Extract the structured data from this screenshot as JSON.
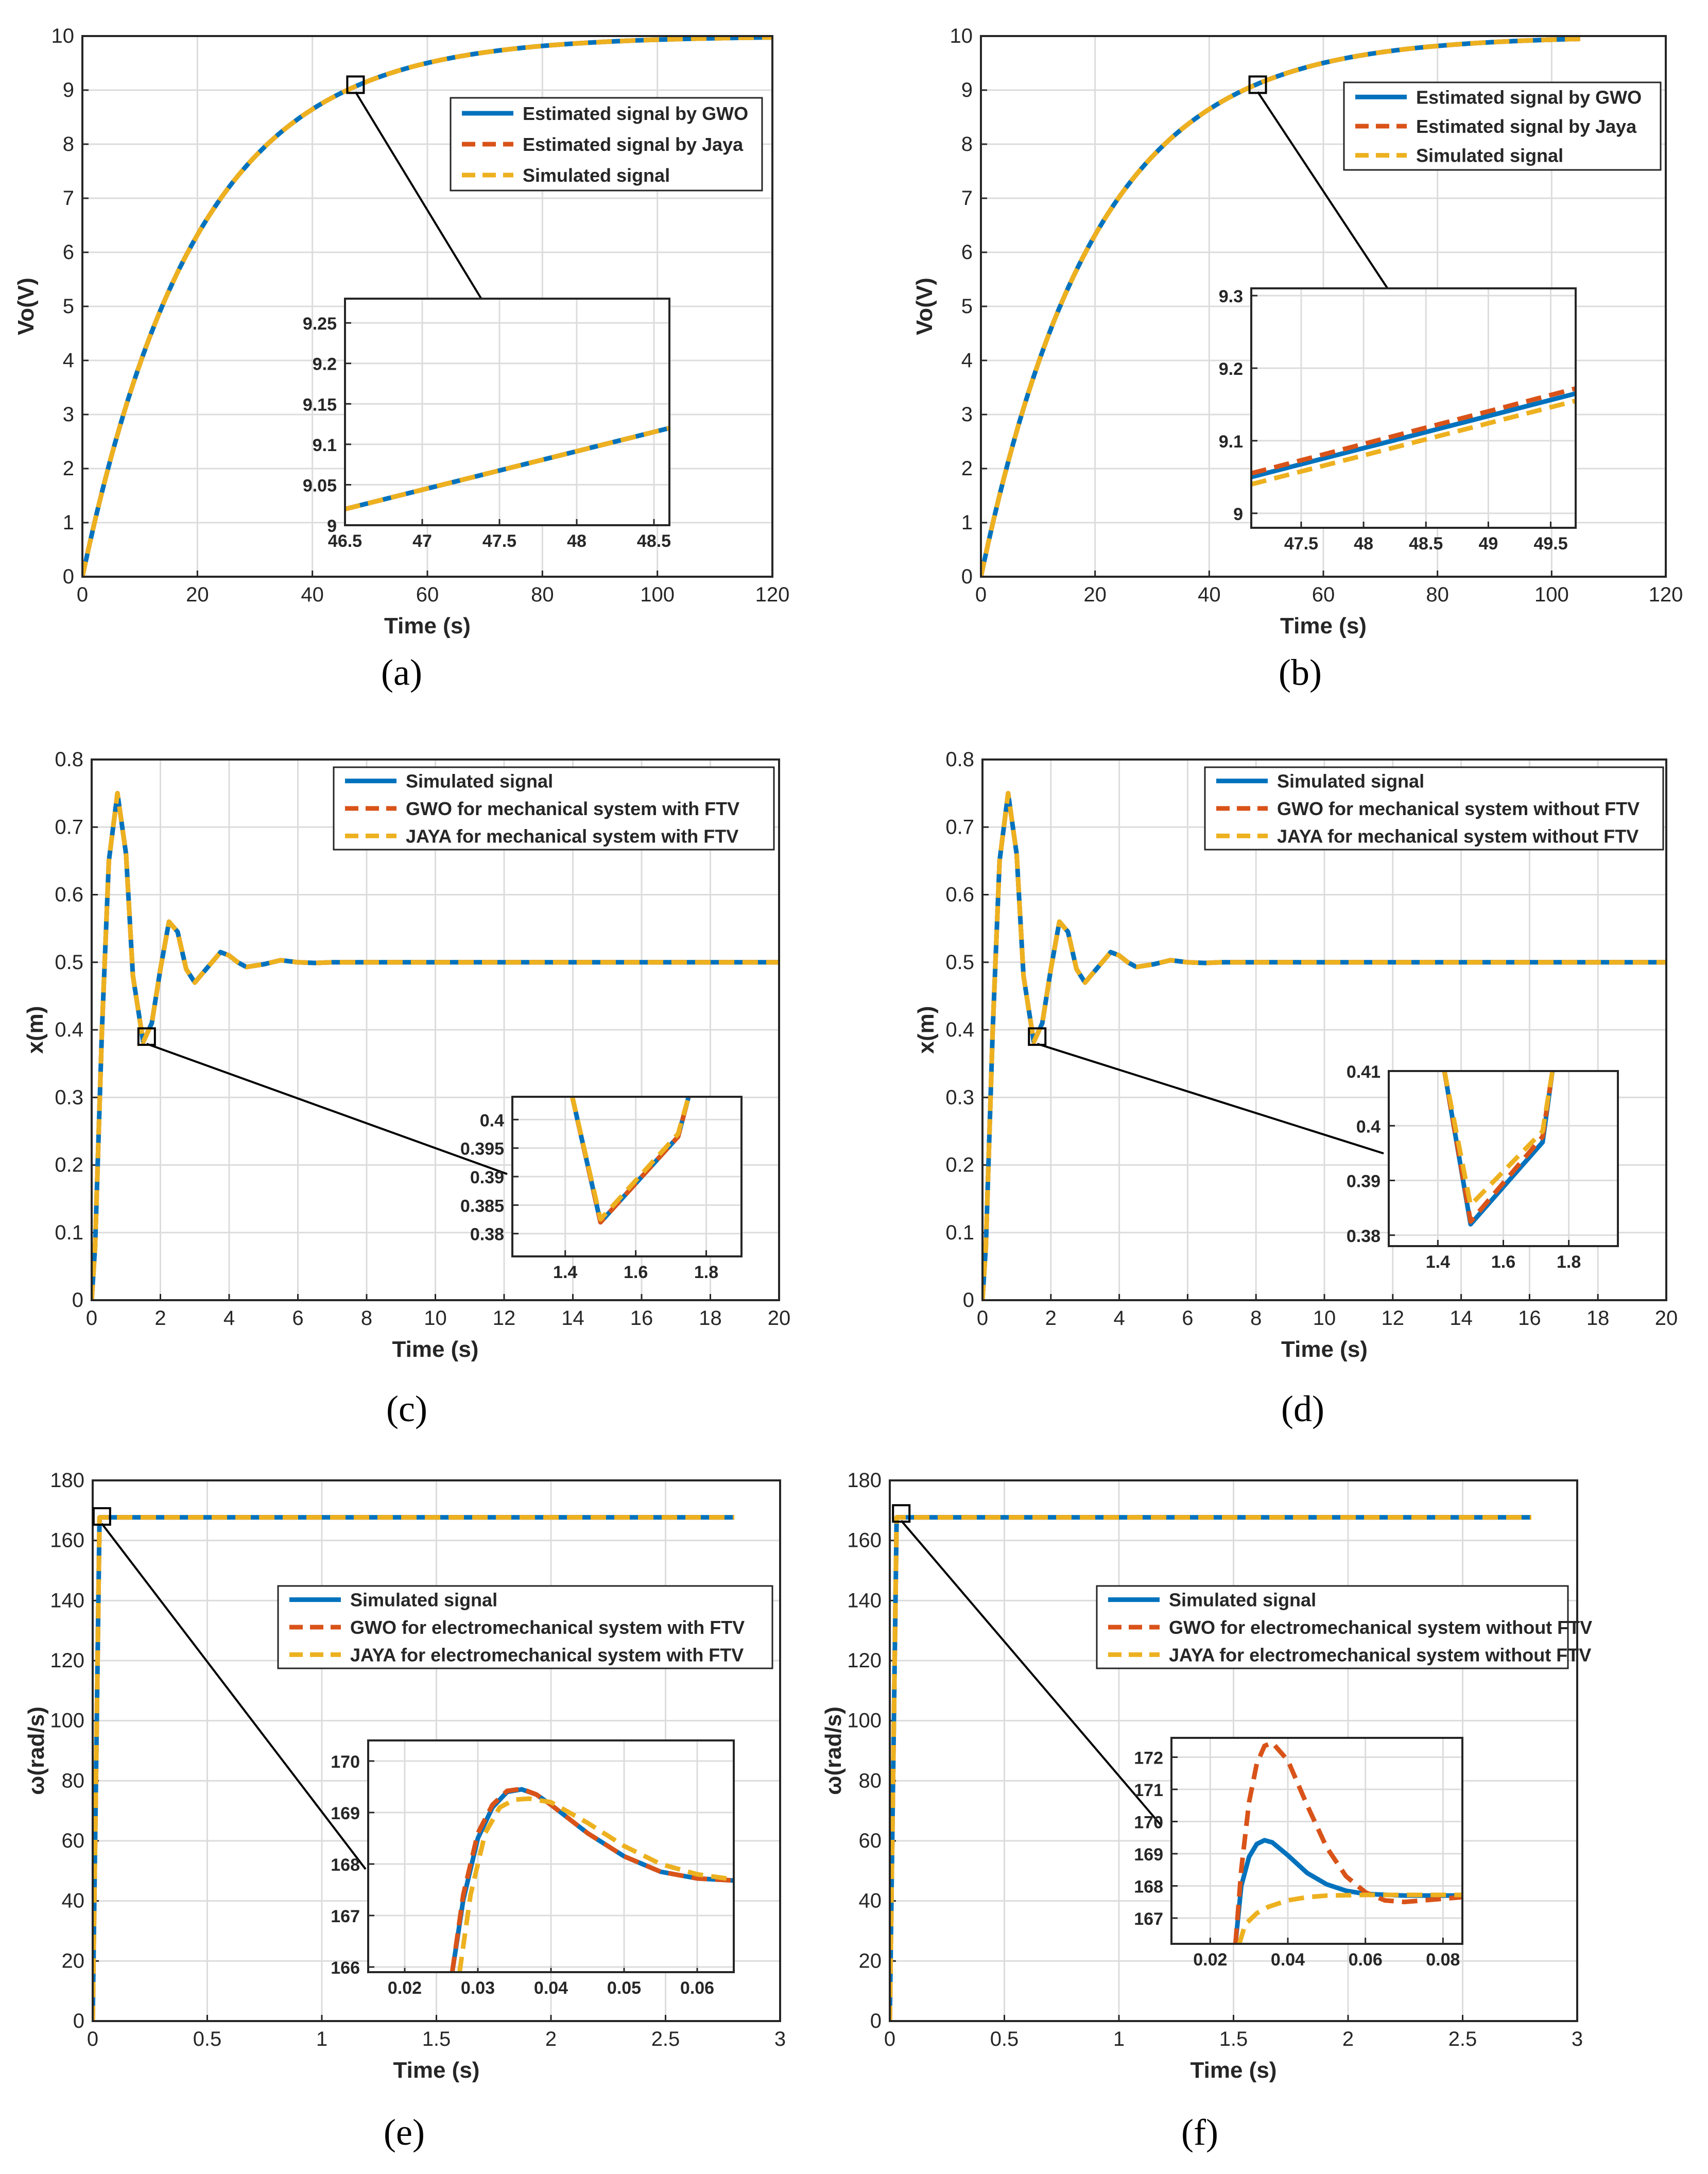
{
  "chart_data": [
    {
      "type": "line",
      "panel_label": "(a)",
      "xlabel": "Time (s)",
      "ylabel": "Vo(V)",
      "xlim": [
        0,
        120
      ],
      "ylim": [
        0,
        10
      ],
      "xticks": [
        "0",
        "20",
        "40",
        "60",
        "80",
        "100",
        "120"
      ],
      "yticks": [
        "0",
        "1",
        "2",
        "3",
        "4",
        "5",
        "6",
        "7",
        "8",
        "9",
        "10"
      ],
      "model": {
        "kind": "exp",
        "K": 10,
        "tau": 20,
        "xmax": 120
      },
      "series": [
        {
          "name": "Estimated signal by GWO",
          "color": "#0072BD",
          "dash": "solid"
        },
        {
          "name": "Estimated signal by Jaya",
          "color": "#D95319",
          "dash": "dashed"
        },
        {
          "name": "Simulated signal",
          "color": "#EDB120",
          "dash": "dashed"
        }
      ],
      "legend_position": "top-right",
      "zoom_marker": {
        "x": 47.5,
        "y": 9.1
      },
      "inset": {
        "xlim": [
          46.5,
          48.6
        ],
        "ylim": [
          9.0,
          9.28
        ],
        "xticks": [
          "46.5",
          "47",
          "47.5",
          "48",
          "48.5"
        ],
        "yticks": [
          "9",
          "9.05",
          "9.1",
          "9.15",
          "9.2",
          "9.25"
        ],
        "series": [
          {
            "name": "Estimated signal by GWO",
            "x": [
              46.5,
              48.6
            ],
            "y": [
              9.02,
              9.12
            ]
          },
          {
            "name": "Estimated signal by Jaya",
            "x": [
              46.5,
              48.6
            ],
            "y": [
              9.02,
              9.12
            ]
          },
          {
            "name": "Simulated signal",
            "x": [
              46.5,
              48.6
            ],
            "y": [
              9.02,
              9.12
            ]
          }
        ]
      }
    },
    {
      "type": "line",
      "panel_label": "(b)",
      "xlabel": "Time (s)",
      "ylabel": "Vo(V)",
      "xlim": [
        0,
        120
      ],
      "ylim": [
        0,
        10
      ],
      "xticks": [
        "0",
        "20",
        "40",
        "60",
        "80",
        "100",
        "120"
      ],
      "yticks": [
        "0",
        "1",
        "2",
        "3",
        "4",
        "5",
        "6",
        "7",
        "8",
        "9",
        "10"
      ],
      "model": {
        "kind": "exp",
        "K": 10,
        "tau": 20,
        "xmax": 105
      },
      "series": [
        {
          "name": "Estimated signal by GWO",
          "color": "#0072BD",
          "dash": "solid"
        },
        {
          "name": "Estimated signal by Jaya",
          "color": "#D95319",
          "dash": "dashed"
        },
        {
          "name": "Simulated signal",
          "color": "#EDB120",
          "dash": "dashed"
        }
      ],
      "legend_position": "top-right",
      "zoom_marker": {
        "x": 48.5,
        "y": 9.1
      },
      "inset": {
        "xlim": [
          47.1,
          49.7
        ],
        "ylim": [
          8.98,
          9.31
        ],
        "xticks": [
          "47.5",
          "48",
          "48.5",
          "49",
          "49.5"
        ],
        "yticks": [
          "9",
          "9.1",
          "9.2",
          "9.3"
        ],
        "series": [
          {
            "name": "Estimated signal by GWO",
            "x": [
              47.1,
              49.7
            ],
            "y": [
              9.05,
              9.165
            ]
          },
          {
            "name": "Estimated signal by Jaya",
            "x": [
              47.1,
              49.7
            ],
            "y": [
              9.055,
              9.172
            ]
          },
          {
            "name": "Simulated signal",
            "x": [
              47.1,
              49.7
            ],
            "y": [
              9.04,
              9.155
            ]
          }
        ]
      }
    },
    {
      "type": "line",
      "panel_label": "(c)",
      "xlabel": "Time (s)",
      "ylabel": "x(m)",
      "xlim": [
        0,
        20
      ],
      "ylim": [
        0,
        0.8
      ],
      "xticks": [
        "0",
        "2",
        "4",
        "6",
        "8",
        "10",
        "12",
        "14",
        "16",
        "18",
        "20"
      ],
      "yticks": [
        "0",
        "0.1",
        "0.2",
        "0.3",
        "0.4",
        "0.5",
        "0.6",
        "0.7",
        "0.8"
      ],
      "curve": {
        "x": [
          0,
          0.1,
          0.3,
          0.5,
          0.75,
          1.0,
          1.2,
          1.5,
          1.75,
          2.0,
          2.25,
          2.5,
          2.75,
          3.0,
          3.25,
          3.5,
          3.75,
          4.0,
          4.25,
          4.5,
          5.0,
          5.5,
          6.0,
          6.5,
          7.0,
          20
        ],
        "y": [
          0,
          0.08,
          0.4,
          0.65,
          0.75,
          0.66,
          0.48,
          0.382,
          0.41,
          0.49,
          0.56,
          0.545,
          0.49,
          0.47,
          0.485,
          0.5,
          0.515,
          0.51,
          0.5,
          0.493,
          0.497,
          0.503,
          0.5,
          0.499,
          0.5,
          0.5
        ]
      },
      "series": [
        {
          "name": "Simulated signal",
          "color": "#0072BD",
          "dash": "solid"
        },
        {
          "name": "GWO for mechanical system with FTV",
          "color": "#D95319",
          "dash": "dashed"
        },
        {
          "name": "JAYA for mechanical system with FTV",
          "color": "#EDB120",
          "dash": "dashed"
        }
      ],
      "legend_position": "top-right",
      "zoom_marker": {
        "x": 1.6,
        "y": 0.39
      },
      "inset": {
        "xlim": [
          1.25,
          1.9
        ],
        "ylim": [
          0.376,
          0.404
        ],
        "xticks": [
          "1.4",
          "1.6",
          "1.8"
        ],
        "yticks": [
          "0.38",
          "0.385",
          "0.39",
          "0.395",
          "0.4"
        ],
        "series": [
          {
            "name": "Simulated signal",
            "x": [
              1.42,
              1.5,
              1.72,
              1.75
            ],
            "y": [
              0.404,
              0.382,
              0.397,
              0.404
            ]
          },
          {
            "name": "GWO for mechanical system with FTV",
            "x": [
              1.42,
              1.5,
              1.72,
              1.75
            ],
            "y": [
              0.404,
              0.382,
              0.397,
              0.404
            ]
          },
          {
            "name": "JAYA for mechanical system with FTV",
            "x": [
              1.42,
              1.5,
              1.72,
              1.75
            ],
            "y": [
              0.404,
              0.3825,
              0.3975,
              0.404
            ]
          }
        ]
      }
    },
    {
      "type": "line",
      "panel_label": "(d)",
      "xlabel": "Time (s)",
      "ylabel": "x(m)",
      "xlim": [
        0,
        20
      ],
      "ylim": [
        0,
        0.8
      ],
      "xticks": [
        "0",
        "2",
        "4",
        "6",
        "8",
        "10",
        "12",
        "14",
        "16",
        "18",
        "20"
      ],
      "yticks": [
        "0",
        "0.1",
        "0.2",
        "0.3",
        "0.4",
        "0.5",
        "0.6",
        "0.7",
        "0.8"
      ],
      "curve": {
        "x": [
          0,
          0.1,
          0.3,
          0.5,
          0.75,
          1.0,
          1.2,
          1.5,
          1.75,
          2.0,
          2.25,
          2.5,
          2.75,
          3.0,
          3.25,
          3.5,
          3.75,
          4.0,
          4.25,
          4.5,
          5.0,
          5.5,
          6.0,
          6.5,
          7.0,
          20
        ],
        "y": [
          0,
          0.08,
          0.4,
          0.65,
          0.75,
          0.66,
          0.48,
          0.382,
          0.41,
          0.49,
          0.56,
          0.545,
          0.49,
          0.47,
          0.485,
          0.5,
          0.515,
          0.51,
          0.5,
          0.493,
          0.497,
          0.503,
          0.5,
          0.499,
          0.5,
          0.5
        ]
      },
      "series": [
        {
          "name": "Simulated signal",
          "color": "#0072BD",
          "dash": "solid"
        },
        {
          "name": "GWO for mechanical system without FTV",
          "color": "#D95319",
          "dash": "dashed"
        },
        {
          "name": "JAYA for mechanical system without FTV",
          "color": "#EDB120",
          "dash": "dashed"
        }
      ],
      "legend_position": "top-right",
      "zoom_marker": {
        "x": 1.6,
        "y": 0.39
      },
      "inset": {
        "xlim": [
          1.25,
          1.95
        ],
        "ylim": [
          0.378,
          0.41
        ],
        "xticks": [
          "1.4",
          "1.6",
          "1.8"
        ],
        "yticks": [
          "0.38",
          "0.39",
          "0.4",
          "0.41"
        ],
        "series": [
          {
            "name": "Simulated signal",
            "x": [
              1.42,
              1.5,
              1.72,
              1.75
            ],
            "y": [
              0.41,
              0.382,
              0.397,
              0.41
            ]
          },
          {
            "name": "GWO for mechanical system without FTV",
            "x": [
              1.42,
              1.5,
              1.72,
              1.75
            ],
            "y": [
              0.41,
              0.3825,
              0.398,
              0.41
            ]
          },
          {
            "name": "JAYA for mechanical system without FTV",
            "x": [
              1.42,
              1.5,
              1.72,
              1.75
            ],
            "y": [
              0.41,
              0.3855,
              0.399,
              0.41
            ]
          }
        ]
      }
    },
    {
      "type": "line",
      "panel_label": "(e)",
      "xlabel": "Time (s)",
      "ylabel": "ω(rad/s)",
      "xlim": [
        0,
        3
      ],
      "ylim": [
        0,
        180
      ],
      "xticks": [
        "0",
        "0.5",
        "1",
        "1.5",
        "2",
        "2.5",
        "3"
      ],
      "yticks": [
        "0",
        "20",
        "40",
        "60",
        "80",
        "100",
        "120",
        "140",
        "160",
        "180"
      ],
      "model": {
        "kind": "step",
        "K": 167.7,
        "rise": 0.03,
        "xmax": 2.8
      },
      "series": [
        {
          "name": "Simulated signal",
          "color": "#0072BD",
          "dash": "solid"
        },
        {
          "name": "GWO for electromechanical system with FTV",
          "color": "#D95319",
          "dash": "dashed"
        },
        {
          "name": "JAYA for electromechanical system with FTV",
          "color": "#EDB120",
          "dash": "dashed"
        }
      ],
      "legend_position": "top-right",
      "zoom_marker": {
        "x": 0.04,
        "y": 168
      },
      "inset": {
        "xlim": [
          0.015,
          0.065
        ],
        "ylim": [
          165.9,
          170.4
        ],
        "xticks": [
          "0.02",
          "0.03",
          "0.04",
          "0.05",
          "0.06"
        ],
        "yticks": [
          "166",
          "167",
          "168",
          "169",
          "170"
        ],
        "series": [
          {
            "name": "Simulated signal",
            "x": [
              0.0265,
              0.028,
              0.03,
              0.032,
              0.034,
              0.036,
              0.038,
              0.04,
              0.045,
              0.05,
              0.055,
              0.06,
              0.065
            ],
            "y": [
              165.9,
              167.3,
              168.5,
              169.1,
              169.4,
              169.45,
              169.35,
              169.15,
              168.6,
              168.15,
              167.85,
              167.72,
              167.68
            ]
          },
          {
            "name": "GWO for electromechanical system with FTV",
            "x": [
              0.0265,
              0.028,
              0.03,
              0.032,
              0.034,
              0.036,
              0.038,
              0.04,
              0.045,
              0.05,
              0.055,
              0.06,
              0.065
            ],
            "y": [
              165.9,
              167.4,
              168.6,
              169.15,
              169.42,
              169.46,
              169.35,
              169.15,
              168.6,
              168.15,
              167.85,
              167.72,
              167.68
            ]
          },
          {
            "name": "JAYA for electromechanical system with FTV",
            "x": [
              0.0275,
              0.029,
              0.031,
              0.033,
              0.035,
              0.037,
              0.04,
              0.045,
              0.05,
              0.055,
              0.06,
              0.065
            ],
            "y": [
              165.9,
              167.4,
              168.6,
              169.1,
              169.25,
              169.27,
              169.2,
              168.8,
              168.35,
              168.0,
              167.8,
              167.7
            ]
          }
        ]
      }
    },
    {
      "type": "line",
      "panel_label": "(f)",
      "xlabel": "Time (s)",
      "ylabel": "ω(rad/s)",
      "xlim": [
        0,
        3
      ],
      "ylim": [
        0,
        180
      ],
      "xticks": [
        "0",
        "0.5",
        "1",
        "1.5",
        "2",
        "2.5",
        "3"
      ],
      "yticks": [
        "0",
        "20",
        "40",
        "60",
        "80",
        "100",
        "120",
        "140",
        "160",
        "180"
      ],
      "model": {
        "kind": "step",
        "K": 167.7,
        "rise": 0.03,
        "xmax": 2.8
      },
      "series": [
        {
          "name": "Simulated signal",
          "color": "#0072BD",
          "dash": "solid"
        },
        {
          "name": "GWO for electromechanical system without FTV",
          "color": "#D95319",
          "dash": "dashed"
        },
        {
          "name": "JAYA for electromechanical system without FTV",
          "color": "#EDB120",
          "dash": "dashed"
        }
      ],
      "legend_position": "top-right",
      "zoom_marker": {
        "x": 0.05,
        "y": 169
      },
      "inset": {
        "xlim": [
          0.01,
          0.085
        ],
        "ylim": [
          166.2,
          172.6
        ],
        "xticks": [
          "0.02",
          "0.04",
          "0.06",
          "0.08"
        ],
        "yticks": [
          "167",
          "168",
          "169",
          "170",
          "171",
          "172"
        ],
        "series": [
          {
            "name": "Simulated signal",
            "x": [
              0.0265,
              0.028,
              0.03,
              0.032,
              0.034,
              0.036,
              0.04,
              0.045,
              0.05,
              0.055,
              0.06,
              0.07,
              0.085
            ],
            "y": [
              166.2,
              168.0,
              168.9,
              169.3,
              169.42,
              169.35,
              168.95,
              168.4,
              168.05,
              167.85,
              167.75,
              167.7,
              167.7
            ]
          },
          {
            "name": "GWO for electromechanical system without FTV",
            "x": [
              0.0265,
              0.028,
              0.03,
              0.032,
              0.034,
              0.036,
              0.04,
              0.045,
              0.05,
              0.055,
              0.06,
              0.065,
              0.07,
              0.075,
              0.085
            ],
            "y": [
              166.2,
              168.5,
              170.6,
              171.8,
              172.35,
              172.45,
              171.9,
              170.5,
              169.2,
              168.3,
              167.8,
              167.55,
              167.5,
              167.55,
              167.65
            ]
          },
          {
            "name": "JAYA for electromechanical system without FTV",
            "x": [
              0.0275,
              0.029,
              0.032,
              0.035,
              0.04,
              0.045,
              0.05,
              0.06,
              0.07,
              0.085
            ],
            "y": [
              166.2,
              166.8,
              167.15,
              167.35,
              167.55,
              167.65,
              167.7,
              167.72,
              167.72,
              167.72
            ]
          }
        ]
      }
    }
  ]
}
